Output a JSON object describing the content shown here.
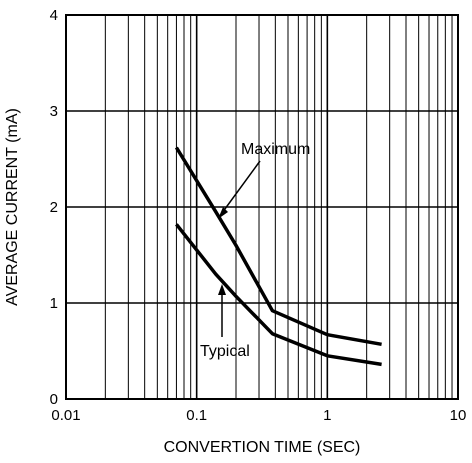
{
  "chart_data": {
    "type": "line",
    "title": "",
    "xlabel": "CONVERTION TIME (SEC)",
    "ylabel": "AVERAGE CURRENT (mA)",
    "xscale": "log",
    "xlim": [
      0.01,
      10
    ],
    "ylim": [
      0,
      4
    ],
    "grid": true,
    "x_tick_labels": [
      "0.01",
      "0.1",
      "1",
      "10"
    ],
    "y_tick_labels": [
      "0",
      "1",
      "2",
      "3",
      "4"
    ],
    "series": [
      {
        "name": "Maximum",
        "x": [
          0.07,
          0.14,
          0.2,
          0.38,
          1.0,
          2.6
        ],
        "y": [
          2.62,
          1.95,
          1.6,
          0.92,
          0.67,
          0.57
        ]
      },
      {
        "name": "Typical",
        "x": [
          0.07,
          0.14,
          0.2,
          0.38,
          1.0,
          2.6
        ],
        "y": [
          1.82,
          1.3,
          1.07,
          0.68,
          0.45,
          0.36
        ]
      }
    ]
  }
}
